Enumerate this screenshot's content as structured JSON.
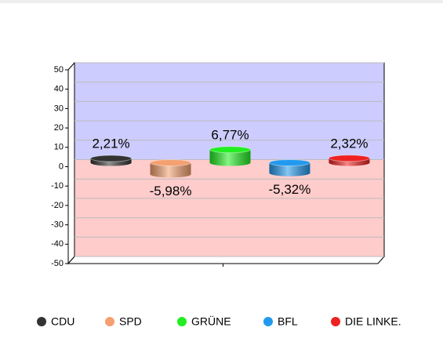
{
  "chart_data": {
    "type": "bar3d",
    "series": [
      {
        "name": "CDU",
        "color": "#333333",
        "values": [
          2.21
        ],
        "value_labels": [
          "2,21%"
        ]
      },
      {
        "name": "SPD",
        "color": "#f4a070",
        "values": [
          -5.98
        ],
        "value_labels": [
          "-5,98%"
        ]
      },
      {
        "name": "GRÜNE",
        "color": "#22ee22",
        "values": [
          6.77
        ],
        "value_labels": [
          "6,77%"
        ]
      },
      {
        "name": "BFL",
        "color": "#2299ee",
        "values": [
          -5.32
        ],
        "value_labels": [
          "-5,32%"
        ]
      },
      {
        "name": "DIE LINKE.",
        "color": "#ee2222",
        "values": [
          2.32
        ],
        "value_labels": [
          "2,32%"
        ]
      }
    ],
    "ylim": [
      -50,
      50
    ],
    "yticks": [
      -50,
      -40,
      -30,
      -20,
      -10,
      0,
      10,
      20,
      30,
      40,
      50
    ],
    "grid": true
  }
}
